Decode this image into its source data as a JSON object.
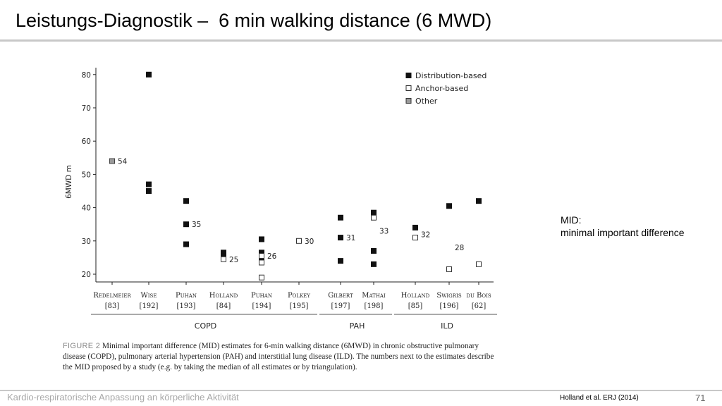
{
  "slide": {
    "title": "Leistungs-Diagnostik –  6 min walking distance (6 MWD)",
    "side_note": [
      "MID:",
      "minimal important difference"
    ],
    "footer_left": "Kardio-respiratorische Anpassung an körperliche Aktivität",
    "footer_citation": "Holland et al. ERJ (2014)",
    "page_number": "71"
  },
  "caption": {
    "label": "FIGURE 2",
    "text": "Minimal important difference (MID) estimates for 6-min walking distance (6MWD) in chronic obstructive pulmonary disease (COPD), pulmonary arterial hypertension (PAH) and interstitial lung disease (ILD). The numbers next to the estimates describe the MID proposed by a study (e.g. by taking the median of all estimates or by triangulation)."
  },
  "chart_data": {
    "type": "scatter",
    "ylabel": "6MWD m",
    "ylim": [
      17,
      82
    ],
    "yticks": [
      20,
      30,
      40,
      50,
      60,
      70,
      80
    ],
    "legend_position": "top-right",
    "legend": [
      {
        "name": "Distribution-based",
        "color": "#111111"
      },
      {
        "name": "Anchor-based",
        "color": "#ffffff"
      },
      {
        "name": "Other",
        "color": "#9a9a9a"
      }
    ],
    "categories": [
      {
        "name": "Redelmeier",
        "ref": "[83]",
        "group": "COPD"
      },
      {
        "name": "Wise",
        "ref": "[192]",
        "group": "COPD"
      },
      {
        "name": "Puhan",
        "ref": "[193]",
        "group": "COPD"
      },
      {
        "name": "Holland",
        "ref": "[84]",
        "group": "COPD"
      },
      {
        "name": "Puhan",
        "ref": "[194]",
        "group": "COPD"
      },
      {
        "name": "Polkey",
        "ref": "[195]",
        "group": "COPD"
      },
      {
        "name": "Gilbert",
        "ref": "[197]",
        "group": "PAH"
      },
      {
        "name": "Mathai",
        "ref": "[198]",
        "group": "PAH"
      },
      {
        "name": "Holland",
        "ref": "[85]",
        "group": "ILD"
      },
      {
        "name": "Swigris",
        "ref": "[196]",
        "group": "ILD"
      },
      {
        "name": "du Bois",
        "ref": "[62]",
        "group": "ILD"
      }
    ],
    "groups": [
      {
        "name": "COPD",
        "from": 0,
        "to": 5
      },
      {
        "name": "PAH",
        "from": 6,
        "to": 7
      },
      {
        "name": "ILD",
        "from": 8,
        "to": 10
      }
    ],
    "series": [
      {
        "name": "Distribution-based",
        "points": [
          {
            "cat": 1,
            "y": 80
          },
          {
            "cat": 1,
            "y": 47
          },
          {
            "cat": 1,
            "y": 45
          },
          {
            "cat": 2,
            "y": 42
          },
          {
            "cat": 2,
            "y": 35
          },
          {
            "cat": 2,
            "y": 29
          },
          {
            "cat": 3,
            "y": 26.5
          },
          {
            "cat": 3,
            "y": 25.5
          },
          {
            "cat": 4,
            "y": 30.5
          },
          {
            "cat": 4,
            "y": 26.5
          },
          {
            "cat": 4,
            "y": 24.5
          },
          {
            "cat": 6,
            "y": 37
          },
          {
            "cat": 6,
            "y": 31
          },
          {
            "cat": 6,
            "y": 24
          },
          {
            "cat": 7,
            "y": 38.5
          },
          {
            "cat": 7,
            "y": 27
          },
          {
            "cat": 7,
            "y": 23
          },
          {
            "cat": 8,
            "y": 34
          },
          {
            "cat": 9,
            "y": 40.5
          },
          {
            "cat": 10,
            "y": 42
          }
        ]
      },
      {
        "name": "Anchor-based",
        "points": [
          {
            "cat": 3,
            "y": 24.5
          },
          {
            "cat": 4,
            "y": 25.5
          },
          {
            "cat": 4,
            "y": 23.5
          },
          {
            "cat": 4,
            "y": 19
          },
          {
            "cat": 5,
            "y": 30
          },
          {
            "cat": 7,
            "y": 37
          },
          {
            "cat": 8,
            "y": 31
          },
          {
            "cat": 9,
            "y": 21.5
          },
          {
            "cat": 10,
            "y": 23
          }
        ]
      },
      {
        "name": "Other",
        "points": [
          {
            "cat": 0,
            "y": 54
          }
        ]
      }
    ],
    "annotations": [
      {
        "cat": 0,
        "y": 54,
        "text": "54"
      },
      {
        "cat": 2,
        "y": 35,
        "text": "35"
      },
      {
        "cat": 3,
        "y": 24.5,
        "text": "25"
      },
      {
        "cat": 4,
        "y": 25.5,
        "text": "26"
      },
      {
        "cat": 5,
        "y": 30,
        "text": "30"
      },
      {
        "cat": 6,
        "y": 31,
        "text": "31"
      },
      {
        "cat": 7,
        "y": 33,
        "text": "33"
      },
      {
        "cat": 8,
        "y": 32,
        "text": "32"
      },
      {
        "cat": 9,
        "y": 28,
        "text": "28"
      }
    ]
  }
}
